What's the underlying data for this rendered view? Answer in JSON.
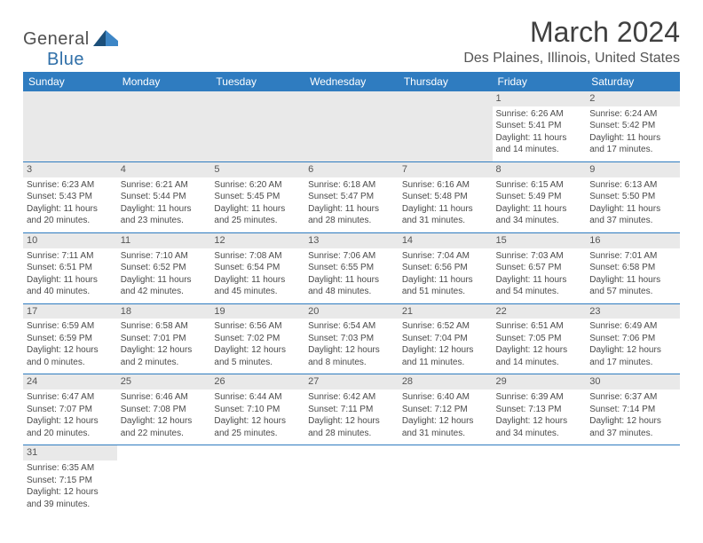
{
  "logo": {
    "text1": "General",
    "text2": "Blue"
  },
  "title": "March 2024",
  "location": "Des Plaines, Illinois, United States",
  "colors": {
    "header_bg": "#2f7cc0",
    "header_text": "#ffffff",
    "daynum_bg": "#e9e9e9",
    "rule": "#2f7cc0",
    "body_text": "#4a4a4a",
    "page_bg": "#ffffff",
    "brand_dark": "#1b4f7a",
    "brand_blue": "#2f6fa8"
  },
  "typography": {
    "title_fontsize": 32,
    "location_fontsize": 16,
    "dow_fontsize": 12,
    "daynum_fontsize": 11,
    "body_fontsize": 10,
    "logo_fontsize": 20
  },
  "days_of_week": [
    "Sunday",
    "Monday",
    "Tuesday",
    "Wednesday",
    "Thursday",
    "Friday",
    "Saturday"
  ],
  "weeks": [
    [
      null,
      null,
      null,
      null,
      null,
      {
        "n": "1",
        "sunrise": "6:26 AM",
        "sunset": "5:41 PM",
        "daylight": "11 hours and 14 minutes."
      },
      {
        "n": "2",
        "sunrise": "6:24 AM",
        "sunset": "5:42 PM",
        "daylight": "11 hours and 17 minutes."
      }
    ],
    [
      {
        "n": "3",
        "sunrise": "6:23 AM",
        "sunset": "5:43 PM",
        "daylight": "11 hours and 20 minutes."
      },
      {
        "n": "4",
        "sunrise": "6:21 AM",
        "sunset": "5:44 PM",
        "daylight": "11 hours and 23 minutes."
      },
      {
        "n": "5",
        "sunrise": "6:20 AM",
        "sunset": "5:45 PM",
        "daylight": "11 hours and 25 minutes."
      },
      {
        "n": "6",
        "sunrise": "6:18 AM",
        "sunset": "5:47 PM",
        "daylight": "11 hours and 28 minutes."
      },
      {
        "n": "7",
        "sunrise": "6:16 AM",
        "sunset": "5:48 PM",
        "daylight": "11 hours and 31 minutes."
      },
      {
        "n": "8",
        "sunrise": "6:15 AM",
        "sunset": "5:49 PM",
        "daylight": "11 hours and 34 minutes."
      },
      {
        "n": "9",
        "sunrise": "6:13 AM",
        "sunset": "5:50 PM",
        "daylight": "11 hours and 37 minutes."
      }
    ],
    [
      {
        "n": "10",
        "sunrise": "7:11 AM",
        "sunset": "6:51 PM",
        "daylight": "11 hours and 40 minutes."
      },
      {
        "n": "11",
        "sunrise": "7:10 AM",
        "sunset": "6:52 PM",
        "daylight": "11 hours and 42 minutes."
      },
      {
        "n": "12",
        "sunrise": "7:08 AM",
        "sunset": "6:54 PM",
        "daylight": "11 hours and 45 minutes."
      },
      {
        "n": "13",
        "sunrise": "7:06 AM",
        "sunset": "6:55 PM",
        "daylight": "11 hours and 48 minutes."
      },
      {
        "n": "14",
        "sunrise": "7:04 AM",
        "sunset": "6:56 PM",
        "daylight": "11 hours and 51 minutes."
      },
      {
        "n": "15",
        "sunrise": "7:03 AM",
        "sunset": "6:57 PM",
        "daylight": "11 hours and 54 minutes."
      },
      {
        "n": "16",
        "sunrise": "7:01 AM",
        "sunset": "6:58 PM",
        "daylight": "11 hours and 57 minutes."
      }
    ],
    [
      {
        "n": "17",
        "sunrise": "6:59 AM",
        "sunset": "6:59 PM",
        "daylight": "12 hours and 0 minutes."
      },
      {
        "n": "18",
        "sunrise": "6:58 AM",
        "sunset": "7:01 PM",
        "daylight": "12 hours and 2 minutes."
      },
      {
        "n": "19",
        "sunrise": "6:56 AM",
        "sunset": "7:02 PM",
        "daylight": "12 hours and 5 minutes."
      },
      {
        "n": "20",
        "sunrise": "6:54 AM",
        "sunset": "7:03 PM",
        "daylight": "12 hours and 8 minutes."
      },
      {
        "n": "21",
        "sunrise": "6:52 AM",
        "sunset": "7:04 PM",
        "daylight": "12 hours and 11 minutes."
      },
      {
        "n": "22",
        "sunrise": "6:51 AM",
        "sunset": "7:05 PM",
        "daylight": "12 hours and 14 minutes."
      },
      {
        "n": "23",
        "sunrise": "6:49 AM",
        "sunset": "7:06 PM",
        "daylight": "12 hours and 17 minutes."
      }
    ],
    [
      {
        "n": "24",
        "sunrise": "6:47 AM",
        "sunset": "7:07 PM",
        "daylight": "12 hours and 20 minutes."
      },
      {
        "n": "25",
        "sunrise": "6:46 AM",
        "sunset": "7:08 PM",
        "daylight": "12 hours and 22 minutes."
      },
      {
        "n": "26",
        "sunrise": "6:44 AM",
        "sunset": "7:10 PM",
        "daylight": "12 hours and 25 minutes."
      },
      {
        "n": "27",
        "sunrise": "6:42 AM",
        "sunset": "7:11 PM",
        "daylight": "12 hours and 28 minutes."
      },
      {
        "n": "28",
        "sunrise": "6:40 AM",
        "sunset": "7:12 PM",
        "daylight": "12 hours and 31 minutes."
      },
      {
        "n": "29",
        "sunrise": "6:39 AM",
        "sunset": "7:13 PM",
        "daylight": "12 hours and 34 minutes."
      },
      {
        "n": "30",
        "sunrise": "6:37 AM",
        "sunset": "7:14 PM",
        "daylight": "12 hours and 37 minutes."
      }
    ],
    [
      {
        "n": "31",
        "sunrise": "6:35 AM",
        "sunset": "7:15 PM",
        "daylight": "12 hours and 39 minutes."
      },
      null,
      null,
      null,
      null,
      null,
      null
    ]
  ],
  "labels": {
    "sunrise_prefix": "Sunrise: ",
    "sunset_prefix": "Sunset: ",
    "daylight_prefix": "Daylight: "
  }
}
